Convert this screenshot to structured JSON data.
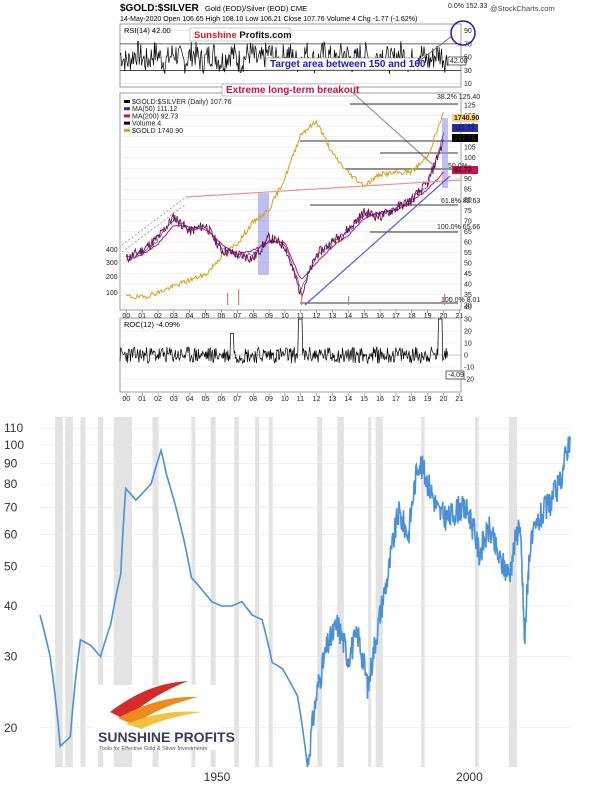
{
  "top": {
    "title_symbol": "$GOLD:$SILVER",
    "title_desc": "Gold (EOD)/Silver (EOD) CME",
    "source": "@StockCharts.com",
    "header_line2": "14-May-2020   Open 106.65  High 108.10  Low 106.21  Close 107.76  Volume 4  Chg -1.77 (-1.62%)",
    "rsi_label": "RSI(14) 42.00",
    "brand_a": "Sunshine",
    "brand_b": " Profits.com",
    "callout_target": "Target area between 150 and 160",
    "callout_breakout": "Extreme long-term breakout",
    "legend": [
      {
        "text": "$GOLD:$SILVER (Daily) 107.76",
        "color": "#000000"
      },
      {
        "text": "MA(50) 111.12",
        "color": "#2b2bc8"
      },
      {
        "text": "MA(200) 92.73",
        "color": "#d0104a"
      },
      {
        "text": "Volume 4",
        "color": "#000000"
      },
      {
        "text": "$GOLD 1740.90",
        "color": "#d9a01a"
      }
    ],
    "roc_label": "ROC(12) -4.09%",
    "fib_labels": [
      "38.2% 125.40",
      "50.0%",
      "61.8% 82.63",
      "100.0% 65.66",
      "100.0% 8.01",
      "0.0% 152.33"
    ],
    "price_right_labels": [
      "1740.90",
      "111.12",
      "107.76",
      "92.73"
    ],
    "rsi_ticks": [
      "90",
      "70",
      "50",
      "42.00",
      "30",
      "10"
    ],
    "rsi_badge": "42.00",
    "roc_badge": "-4.09",
    "roc_ticks": [
      "40",
      "30",
      "20",
      "10",
      "0",
      "-10",
      "-20"
    ],
    "price_ticks": [
      "125",
      "120",
      "115",
      "110",
      "105",
      "100",
      "95",
      "90",
      "85",
      "80",
      "75",
      "70",
      "65",
      "60",
      "55",
      "50",
      "45",
      "40",
      "35",
      "30"
    ],
    "left_axis": [
      "400",
      "300",
      "200",
      "100"
    ],
    "x_labels": [
      "00",
      "01",
      "02",
      "03",
      "04",
      "05",
      "06",
      "07",
      "08",
      "09",
      "10",
      "11",
      "12",
      "13",
      "14",
      "15",
      "16",
      "17",
      "18",
      "19",
      "20",
      "21"
    ]
  },
  "chart_data": [
    {
      "type": "line",
      "title": "$GOLD:$SILVER Gold (EOD)/Silver (EOD) CME",
      "x": [
        2000,
        2001,
        2002,
        2003,
        2004,
        2005,
        2006,
        2007,
        2008,
        2009,
        2010,
        2011,
        2012,
        2013,
        2014,
        2015,
        2016,
        2017,
        2018,
        2019,
        2020
      ],
      "series": [
        {
          "name": "$GOLD:$SILVER (Daily)",
          "values": [
            52,
            56,
            62,
            72,
            65,
            68,
            56,
            54,
            52,
            62,
            58,
            35,
            54,
            60,
            66,
            74,
            72,
            76,
            80,
            88,
            108
          ]
        },
        {
          "name": "MA(50)",
          "values": [
            52,
            55,
            61,
            71,
            66,
            67,
            57,
            53,
            54,
            61,
            59,
            38,
            53,
            60,
            65,
            73,
            73,
            76,
            80,
            87,
            111
          ]
        },
        {
          "name": "MA(200)",
          "values": [
            51,
            54,
            59,
            68,
            67,
            66,
            59,
            54,
            56,
            60,
            60,
            42,
            50,
            58,
            63,
            71,
            74,
            75,
            79,
            85,
            93
          ]
        },
        {
          "name": "$GOLD",
          "values": [
            280,
            270,
            310,
            360,
            410,
            450,
            600,
            700,
            870,
            970,
            1220,
            1570,
            1670,
            1410,
            1260,
            1160,
            1250,
            1260,
            1270,
            1390,
            1740
          ]
        }
      ],
      "ylim": [
        30,
        125
      ]
    },
    {
      "type": "line",
      "x": [
        1915,
        1917,
        1919,
        1921,
        1923,
        1925,
        1927,
        1929,
        1931,
        1932,
        1934,
        1937,
        1939,
        1940,
        1941,
        1943,
        1945,
        1947,
        1949,
        1951,
        1953,
        1955,
        1957,
        1959,
        1961,
        1963,
        1966,
        1968,
        1970,
        1972,
        1974,
        1976,
        1978,
        1980,
        1982,
        1984,
        1986,
        1988,
        1990,
        1992,
        1994,
        1996,
        1998,
        2000,
        2002,
        2004,
        2006,
        2008,
        2010,
        2011,
        2012,
        2014,
        2016,
        2018,
        2020
      ],
      "series": [
        {
          "name": "",
          "values": [
            38,
            30,
            18,
            19,
            33,
            32,
            30,
            36,
            48,
            78,
            73,
            80,
            97,
            85,
            77,
            62,
            47,
            44,
            41,
            40,
            40,
            41,
            38,
            37,
            29,
            28,
            24,
            16,
            25,
            32,
            36,
            30,
            34,
            25,
            36,
            48,
            68,
            60,
            92,
            80,
            68,
            66,
            70,
            68,
            54,
            62,
            52,
            48,
            65,
            32,
            55,
            66,
            72,
            80,
            105
          ]
        }
      ],
      "yscale": "log",
      "ylim": [
        16,
        112
      ],
      "xlim": [
        1915,
        2020
      ],
      "y_ticks": [
        20,
        30,
        40,
        50,
        60,
        70,
        80,
        90,
        100,
        110
      ],
      "x_ticks": [
        1950,
        2000
      ]
    }
  ],
  "bottom": {
    "brand_name": "SUNSHINE PROFITS",
    "brand_tagline": "Tools for Effective Gold & Silver Investments",
    "colors": {
      "line": "#4a90d9",
      "band": "#e3e3e3"
    }
  }
}
